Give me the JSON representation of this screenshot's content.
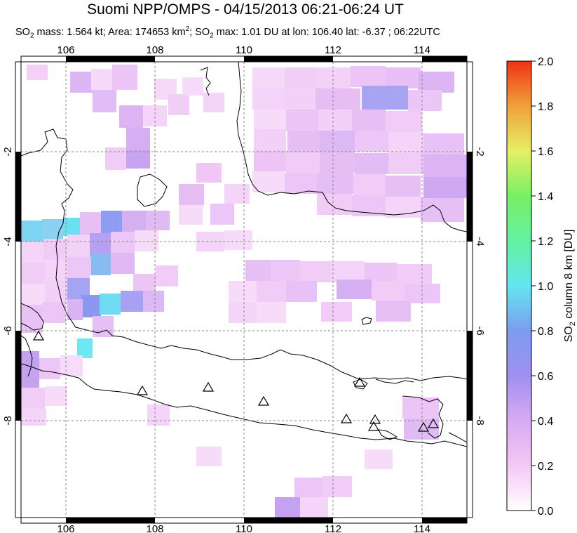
{
  "title": "Suomi NPP/OMPS - 04/15/2013 06:21-06:24 UT",
  "subtitle": {
    "p1": "SO",
    "s1": "2",
    "p2": " mass: 1.564 kt; Area: 174653 km",
    "s2": "2",
    "p3": "; SO",
    "s3": "2",
    "p4": " max: 1.01 DU at lon: 106.40 lat: -6.37 ; 06:22UTC"
  },
  "map": {
    "lon_labels": [
      "106",
      "108",
      "110",
      "112",
      "114"
    ],
    "lat_labels": [
      "-2",
      "-4",
      "-6",
      "-8"
    ],
    "volcano_count": 10
  },
  "colorbar": {
    "label_pre": "SO",
    "label_sub": "2",
    "label_post": " column 8 km [DU]",
    "ticks": [
      "2.0",
      "1.8",
      "1.6",
      "1.4",
      "1.2",
      "1.0",
      "0.8",
      "0.6",
      "0.4",
      "0.2",
      "0.0"
    ],
    "colors": [
      "#ffffff",
      "#f4c8f6",
      "#c8a0f0",
      "#8c8cf0",
      "#64c8f0",
      "#64f0f0",
      "#64f064",
      "#f0f064",
      "#f0a03c",
      "#f03c14"
    ]
  }
}
